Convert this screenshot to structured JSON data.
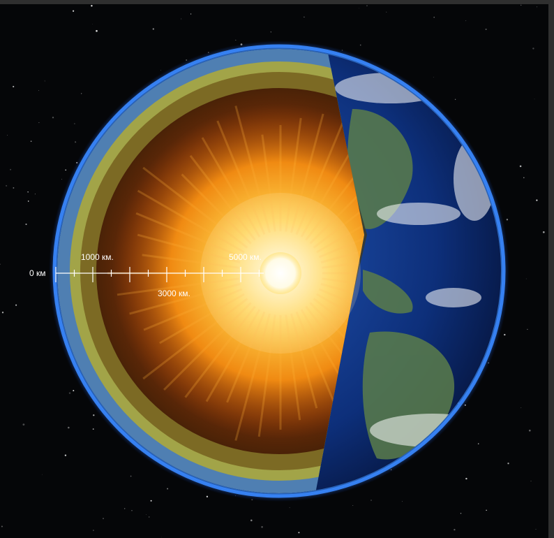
{
  "scale": {
    "origin_label": "0 км",
    "labels": [
      {
        "value_km": 1000,
        "text": "1000 км."
      },
      {
        "value_km": 3000,
        "text": "3000 км."
      },
      {
        "value_km": 5000,
        "text": "5000 км."
      }
    ]
  },
  "colors": {
    "space": "#050608",
    "atmosphere": "#2e7dff",
    "ocean": "#0d2f7a",
    "crust": "#3c6b9c",
    "mantle_outer": "#8a8a32",
    "mantle_inner": "#6e5a1e",
    "outer_core": "#8a3d0a",
    "inner_core_glow": "#ffcf4a",
    "inner_core": "#ffffff"
  },
  "icons": {
    "earth": "earth-cross-section-icon"
  }
}
